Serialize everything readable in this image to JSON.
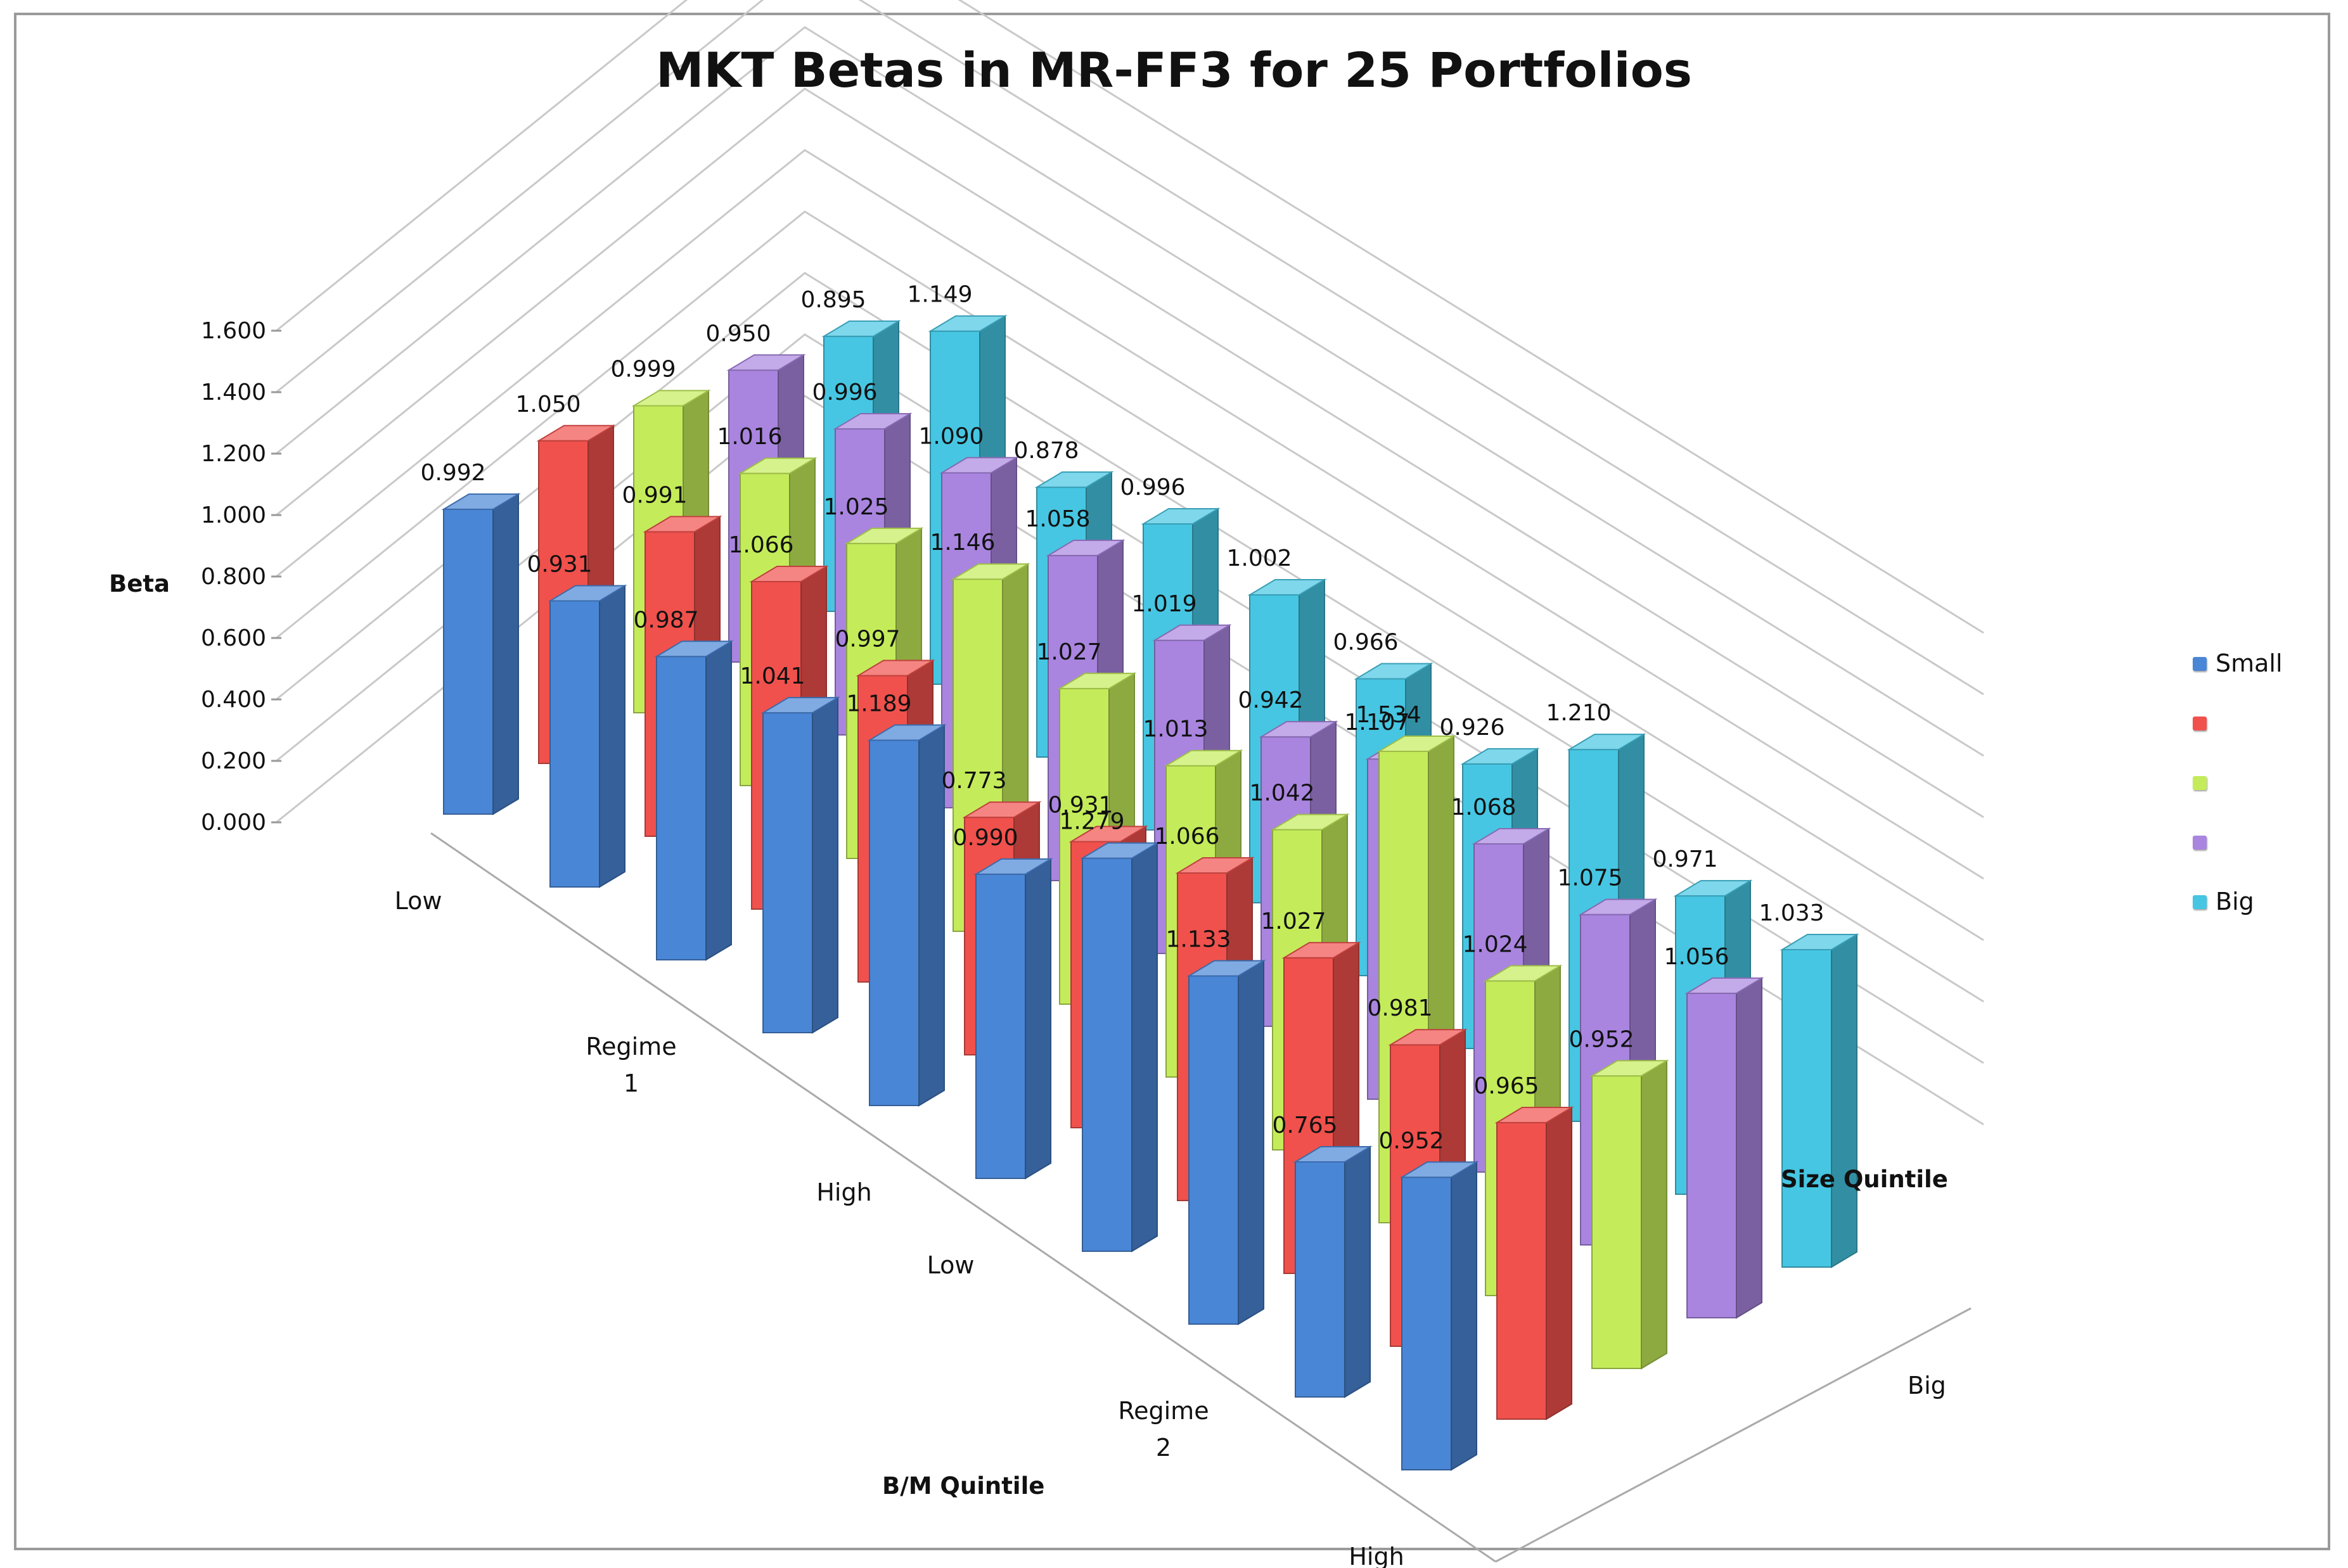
{
  "chart_data": {
    "type": "bar",
    "variant": "3d-column",
    "title": "MKT Betas in MR-FF3 for 25 Portfolios",
    "ylabel": "Beta",
    "xlabel": "B/M Quintile",
    "zlabel": "Size Quintile",
    "ylim": [
      0,
      1.6
    ],
    "yticks": [
      "0.000",
      "0.200",
      "0.400",
      "0.600",
      "0.800",
      "1.000",
      "1.200",
      "1.400",
      "1.600"
    ],
    "categories": [
      "Low",
      "",
      "Regime\n1",
      "",
      "High",
      "Low",
      "",
      "Regime\n2",
      "",
      "High"
    ],
    "depth_categories": [
      "Small",
      "",
      "",
      "",
      "Big"
    ],
    "legend_position": "right",
    "series": [
      {
        "name": "Small",
        "color": "#4a86d6",
        "values": [
          0.992,
          0.931,
          0.987,
          1.041,
          1.189,
          0.99,
          1.279,
          1.133,
          0.765,
          0.952
        ]
      },
      {
        "name": "",
        "color": "#f0514c",
        "values": [
          1.05,
          0.991,
          1.066,
          0.997,
          0.773,
          0.931,
          1.066,
          1.027,
          0.981,
          0.965
        ]
      },
      {
        "name": "",
        "color": "#c4ec5a",
        "values": [
          0.999,
          1.016,
          1.025,
          1.146,
          1.027,
          1.013,
          1.042,
          1.534,
          1.024,
          0.952
        ]
      },
      {
        "name": "",
        "color": "#a985df",
        "values": [
          0.95,
          0.996,
          1.09,
          1.058,
          1.019,
          0.942,
          1.107,
          1.068,
          1.075,
          1.056
        ]
      },
      {
        "name": "Big",
        "color": "#46c6e2",
        "values": [
          0.895,
          1.149,
          0.878,
          0.996,
          1.002,
          0.966,
          0.926,
          1.21,
          0.971,
          1.033
        ]
      }
    ],
    "legend": [
      {
        "label": "Small",
        "color": "#4a86d6"
      },
      {
        "label": "",
        "color": "#f0514c"
      },
      {
        "label": "",
        "color": "#c4ec5a"
      },
      {
        "label": "",
        "color": "#a985df"
      },
      {
        "label": "Big",
        "color": "#46c6e2"
      }
    ]
  }
}
